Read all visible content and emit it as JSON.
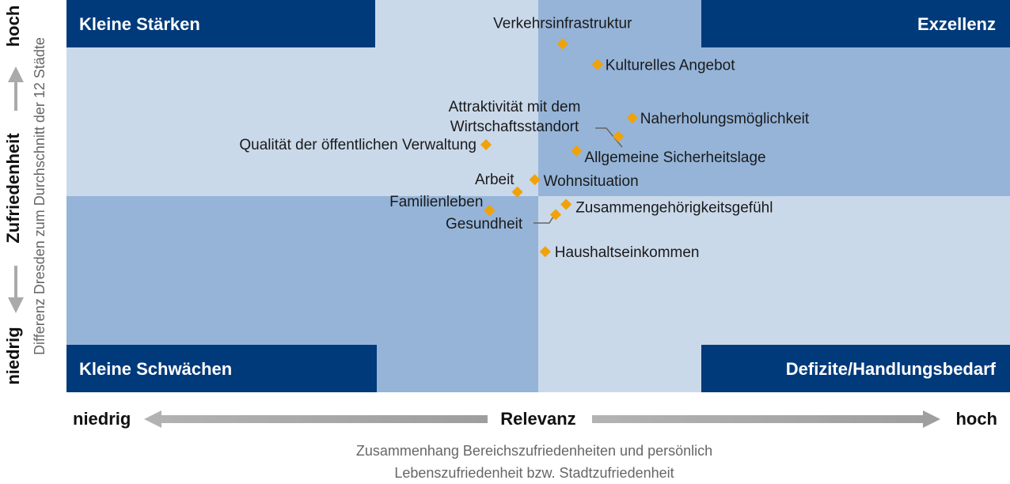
{
  "chart_data": {
    "type": "scatter",
    "title": "",
    "quadrants": {
      "top_left": "Kleine Stärken",
      "top_right": "Exzellenz",
      "bottom_left": "Kleine Schwächen",
      "bottom_right": "Defizite/Handlungsbedarf"
    },
    "x_axis": {
      "label": "Relevanz",
      "low": "niedrig",
      "high": "hoch",
      "caption_line1": "Zusammenhang Bereichszufriedenheiten und persönlich",
      "caption_line2": "Lebenszufriedenheit bzw. Stadtzufriedenheit"
    },
    "y_axis": {
      "label": "Zufriedenheit",
      "low": "niedrig",
      "high": "hoch",
      "sublabel": "Differenz Dresden zum Durchschnitt der 12 Städte"
    },
    "points": [
      {
        "label": "Verkehrsinfrastruktur",
        "x": 0.07,
        "y": 0.74
      },
      {
        "label": "Kulturelles Angebot",
        "x": 0.17,
        "y": 0.64
      },
      {
        "label": "Naherholungsmöglichkeit",
        "x": 0.27,
        "y": 0.38
      },
      {
        "label": "Attraktivität mit dem Wirtschaftsstandort",
        "x": 0.23,
        "y": 0.29
      },
      {
        "label": "Allgemeine Sicherheitslage",
        "x": 0.11,
        "y": 0.22
      },
      {
        "label": "Qualität der öffentlichen Verwaltung",
        "x": -0.15,
        "y": 0.25
      },
      {
        "label": "Wohnsituation",
        "x": -0.01,
        "y": 0.08
      },
      {
        "label": "Arbeit",
        "x": -0.06,
        "y": 0.02
      },
      {
        "label": "Zusammengehörigkeitsgefühl",
        "x": 0.08,
        "y": -0.04
      },
      {
        "label": "Familienleben",
        "x": -0.14,
        "y": -0.07
      },
      {
        "label": "Gesundheit",
        "x": 0.05,
        "y": -0.09
      },
      {
        "label": "Haushaltseinkommen",
        "x": 0.02,
        "y": -0.27
      }
    ],
    "colors": {
      "dark_blue": "#003a7a",
      "light_blue": "#cad9ea",
      "mid_blue": "#95b4d8",
      "marker": "#f0a20b",
      "arrow_gray": "#aaaaaa"
    }
  }
}
